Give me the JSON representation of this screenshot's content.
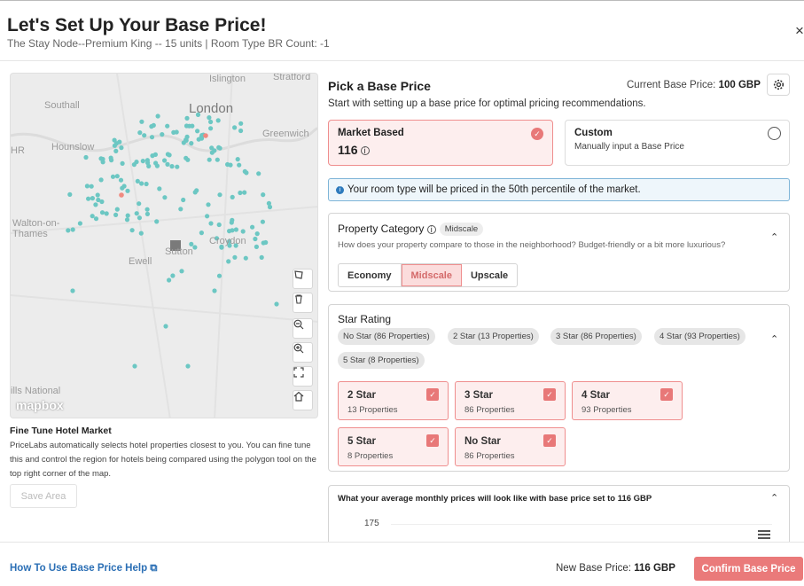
{
  "header": {
    "title": "Let's Set Up Your Base Price!",
    "subtitle": "The Stay Node--Premium King -- 15 units | Room Type BR Count: -1",
    "close_icon": "×"
  },
  "map": {
    "labels": [
      "Islington",
      "Stratford",
      "London",
      "Southall",
      "Greenwich",
      "Hounslow",
      "HR",
      "Walton-on-\nThames",
      "Croydon",
      "Ewell",
      "Sutton",
      "ills National"
    ],
    "logo": "mapbox",
    "controls": [
      "polygon-icon",
      "trash-icon",
      "zoom-out-icon",
      "zoom-in-icon",
      "fullscreen-icon",
      "home-icon"
    ]
  },
  "fine_tune": {
    "title": "Fine Tune Hotel Market",
    "description": "PriceLabs automatically selects hotel properties closest to you. You can fine tune this and control the region for hotels being compared using the polygon tool on the top right corner of the map.",
    "save_label": "Save Area"
  },
  "pick": {
    "title": "Pick a Base Price",
    "current_label": "Current Base Price:",
    "current_value": "100 GBP",
    "subtitle": "Start with setting up a base price for optimal pricing recommendations.",
    "market": {
      "title": "Market Based",
      "value": "116",
      "info": "i"
    },
    "custom": {
      "title": "Custom",
      "desc": "Manually input a Base Price"
    },
    "info": "Your room type will be priced in the 50th percentile of the market."
  },
  "property_category": {
    "title": "Property Category",
    "tag": "Midscale",
    "desc": "How does your property compare to those in the neighborhood? Budget-friendly or a bit more luxurious?",
    "options": [
      "Economy",
      "Midscale",
      "Upscale"
    ],
    "selected": "Midscale"
  },
  "star_rating": {
    "title": "Star Rating",
    "pills": [
      "No Star (86 Properties)",
      "2 Star (13 Properties)",
      "3 Star (86 Properties)",
      "4 Star (93 Properties)",
      "5 Star (8 Properties)"
    ],
    "cards": [
      {
        "name": "2 Star",
        "props": "13 Properties"
      },
      {
        "name": "3 Star",
        "props": "86 Properties"
      },
      {
        "name": "4 Star",
        "props": "93 Properties"
      },
      {
        "name": "5 Star",
        "props": "8 Properties"
      },
      {
        "name": "No Star",
        "props": "86 Properties"
      }
    ]
  },
  "chart_preview": {
    "title": "What your average monthly prices will look like with base price set to 116 GBP",
    "y_tick": "175"
  },
  "footer": {
    "help": "How To Use Base Price Help",
    "new_label": "New Base Price:",
    "new_value": "116 GBP",
    "confirm": "Confirm Base Price"
  },
  "colors": {
    "accent": "#ea7a7a",
    "selected_bg": "#fdeeee",
    "dot": "#6cc7c3",
    "link": "#2b6fb5"
  }
}
